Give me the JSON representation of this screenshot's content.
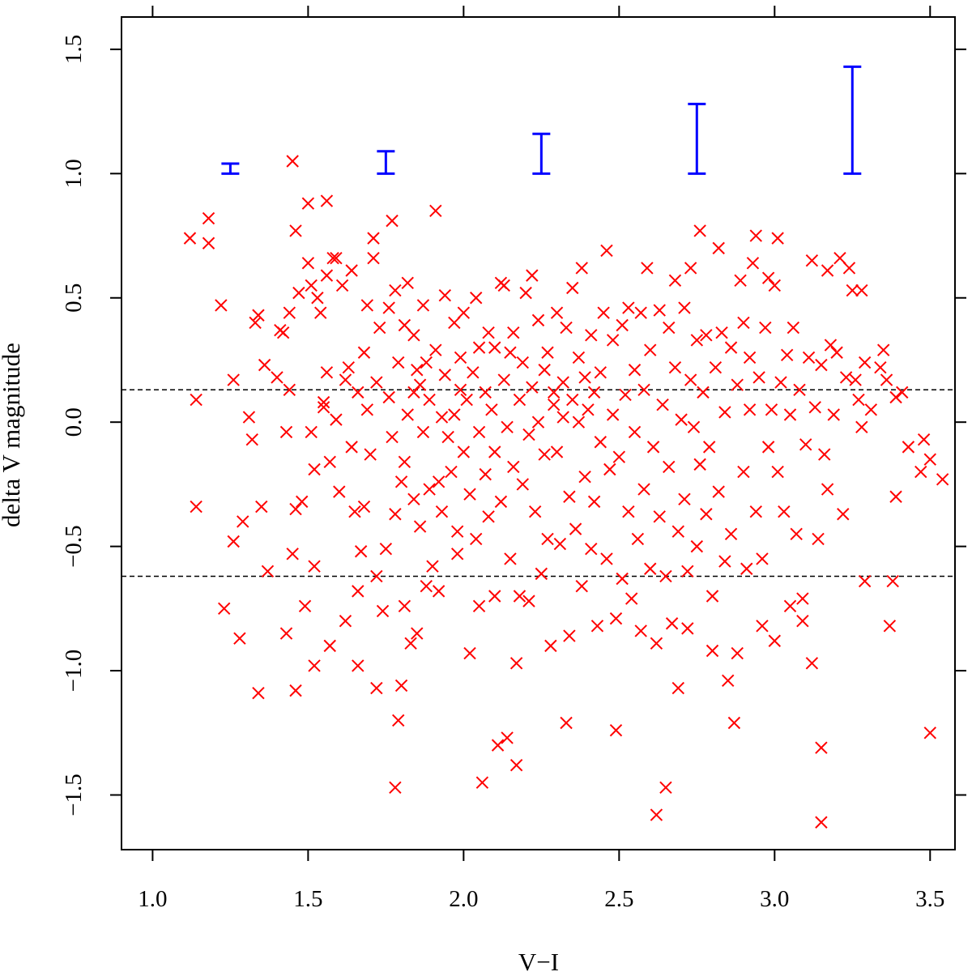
{
  "chart_data": {
    "type": "scatter",
    "title": "",
    "xlabel": "V−I",
    "ylabel": "delta V magnitude",
    "xlim": [
      0.9,
      3.58
    ],
    "ylim": [
      -1.72,
      1.63
    ],
    "x_ticks": [
      1.0,
      1.5,
      2.0,
      2.5,
      3.0,
      3.5
    ],
    "x_tick_labels": [
      "1.0",
      "1.5",
      "2.0",
      "2.5",
      "3.0",
      "3.5"
    ],
    "y_ticks": [
      -1.5,
      -1.0,
      -0.5,
      0.0,
      0.5,
      1.0,
      1.5
    ],
    "y_tick_labels": [
      "−1.5",
      "−1.0",
      "−0.5",
      "0.0",
      "0.5",
      "1.0",
      "1.5"
    ],
    "grid": false,
    "colors": {
      "points": "#ff0000",
      "error_bars": "#0000ff",
      "reference_lines": "#000000"
    },
    "reference_lines": [
      0.13,
      -0.62
    ],
    "error_bars": [
      {
        "x": 1.25,
        "low": 1.0,
        "high": 1.04
      },
      {
        "x": 1.75,
        "low": 1.0,
        "high": 1.09
      },
      {
        "x": 2.25,
        "low": 1.0,
        "high": 1.16
      },
      {
        "x": 2.75,
        "low": 1.0,
        "high": 1.28
      },
      {
        "x": 3.25,
        "low": 1.0,
        "high": 1.43
      }
    ],
    "points": [
      [
        1.12,
        0.74
      ],
      [
        1.18,
        0.82
      ],
      [
        1.18,
        0.72
      ],
      [
        1.22,
        0.47
      ],
      [
        1.14,
        0.09
      ],
      [
        1.14,
        -0.34
      ],
      [
        1.23,
        -0.75
      ],
      [
        1.26,
        0.17
      ],
      [
        1.26,
        -0.48
      ],
      [
        1.28,
        -0.87
      ],
      [
        1.29,
        -0.4
      ],
      [
        1.31,
        0.02
      ],
      [
        1.32,
        -0.07
      ],
      [
        1.33,
        0.4
      ],
      [
        1.34,
        0.43
      ],
      [
        1.35,
        -0.34
      ],
      [
        1.34,
        -1.09
      ],
      [
        1.36,
        0.23
      ],
      [
        1.37,
        -0.6
      ],
      [
        1.4,
        0.18
      ],
      [
        1.41,
        0.37
      ],
      [
        1.42,
        0.36
      ],
      [
        1.43,
        -0.04
      ],
      [
        1.43,
        -0.85
      ],
      [
        1.44,
        0.13
      ],
      [
        1.44,
        0.44
      ],
      [
        1.45,
        -0.53
      ],
      [
        1.45,
        1.05
      ],
      [
        1.46,
        -0.35
      ],
      [
        1.46,
        -1.08
      ],
      [
        1.46,
        0.77
      ],
      [
        1.47,
        0.52
      ],
      [
        1.48,
        -0.32
      ],
      [
        1.49,
        -0.74
      ],
      [
        1.5,
        0.88
      ],
      [
        1.5,
        0.64
      ],
      [
        1.51,
        0.55
      ],
      [
        1.51,
        -0.04
      ],
      [
        1.52,
        -0.19
      ],
      [
        1.52,
        -0.58
      ],
      [
        1.52,
        -0.98
      ],
      [
        1.53,
        0.5
      ],
      [
        1.54,
        0.44
      ],
      [
        1.55,
        0.08
      ],
      [
        1.55,
        0.06
      ],
      [
        1.56,
        0.59
      ],
      [
        1.56,
        0.89
      ],
      [
        1.56,
        0.2
      ],
      [
        1.57,
        -0.16
      ],
      [
        1.57,
        -0.9
      ],
      [
        1.58,
        0.66
      ],
      [
        1.59,
        0.66
      ],
      [
        1.59,
        0.01
      ],
      [
        1.6,
        -0.28
      ],
      [
        1.61,
        0.55
      ],
      [
        1.62,
        0.17
      ],
      [
        1.62,
        -0.8
      ],
      [
        1.63,
        0.22
      ],
      [
        1.64,
        0.61
      ],
      [
        1.64,
        -0.1
      ],
      [
        1.65,
        -0.36
      ],
      [
        1.66,
        0.12
      ],
      [
        1.66,
        -0.68
      ],
      [
        1.66,
        -0.98
      ],
      [
        1.67,
        -0.52
      ],
      [
        1.68,
        0.28
      ],
      [
        1.68,
        -0.34
      ],
      [
        1.69,
        0.47
      ],
      [
        1.69,
        0.05
      ],
      [
        1.7,
        -0.13
      ],
      [
        1.71,
        0.74
      ],
      [
        1.71,
        0.66
      ],
      [
        1.72,
        0.16
      ],
      [
        1.72,
        -0.62
      ],
      [
        1.72,
        -1.07
      ],
      [
        1.73,
        0.38
      ],
      [
        1.74,
        -0.76
      ],
      [
        1.75,
        -0.51
      ],
      [
        1.76,
        0.1
      ],
      [
        1.76,
        0.46
      ],
      [
        1.77,
        -0.06
      ],
      [
        1.77,
        0.81
      ],
      [
        1.78,
        0.53
      ],
      [
        1.78,
        -0.37
      ],
      [
        1.78,
        -1.47
      ],
      [
        1.79,
        0.24
      ],
      [
        1.79,
        -1.2
      ],
      [
        1.8,
        -0.24
      ],
      [
        1.8,
        -1.06
      ],
      [
        1.81,
        0.39
      ],
      [
        1.81,
        -0.16
      ],
      [
        1.81,
        -0.74
      ],
      [
        1.82,
        0.56
      ],
      [
        1.82,
        0.03
      ],
      [
        1.83,
        -0.89
      ],
      [
        1.84,
        0.35
      ],
      [
        1.84,
        0.12
      ],
      [
        1.84,
        -0.31
      ],
      [
        1.85,
        0.21
      ],
      [
        1.85,
        -0.85
      ],
      [
        1.86,
        -0.42
      ],
      [
        1.86,
        0.15
      ],
      [
        1.87,
        -0.04
      ],
      [
        1.87,
        0.47
      ],
      [
        1.88,
        -0.66
      ],
      [
        1.88,
        0.24
      ],
      [
        1.89,
        -0.27
      ],
      [
        1.89,
        0.09
      ],
      [
        1.9,
        -0.58
      ],
      [
        1.91,
        0.85
      ],
      [
        1.91,
        0.29
      ],
      [
        1.92,
        -0.24
      ],
      [
        1.92,
        -0.68
      ],
      [
        1.93,
        0.02
      ],
      [
        1.93,
        -0.36
      ],
      [
        1.94,
        0.51
      ],
      [
        1.94,
        0.19
      ],
      [
        1.95,
        -0.06
      ],
      [
        1.96,
        -0.2
      ],
      [
        1.97,
        0.4
      ],
      [
        1.97,
        0.03
      ],
      [
        1.98,
        -0.53
      ],
      [
        1.98,
        -0.44
      ],
      [
        1.99,
        0.26
      ],
      [
        1.99,
        0.13
      ],
      [
        2.0,
        -0.12
      ],
      [
        2.0,
        0.44
      ],
      [
        2.01,
        0.09
      ],
      [
        2.02,
        -0.29
      ],
      [
        2.02,
        -0.93
      ],
      [
        2.03,
        0.2
      ],
      [
        2.04,
        0.5
      ],
      [
        2.04,
        -0.47
      ],
      [
        2.05,
        -0.04
      ],
      [
        2.05,
        0.3
      ],
      [
        2.05,
        -0.74
      ],
      [
        2.06,
        -1.45
      ],
      [
        2.07,
        0.12
      ],
      [
        2.07,
        -0.21
      ],
      [
        2.08,
        0.36
      ],
      [
        2.08,
        -0.38
      ],
      [
        2.09,
        0.05
      ],
      [
        2.1,
        0.3
      ],
      [
        2.1,
        -0.12
      ],
      [
        2.1,
        -0.7
      ],
      [
        2.11,
        -1.3
      ],
      [
        2.12,
        0.56
      ],
      [
        2.12,
        -0.32
      ],
      [
        2.13,
        0.17
      ],
      [
        2.13,
        0.55
      ],
      [
        2.14,
        -0.02
      ],
      [
        2.14,
        -1.27
      ],
      [
        2.15,
        0.28
      ],
      [
        2.15,
        -0.55
      ],
      [
        2.16,
        -0.18
      ],
      [
        2.16,
        0.36
      ],
      [
        2.17,
        -0.97
      ],
      [
        2.17,
        -1.38
      ],
      [
        2.18,
        0.09
      ],
      [
        2.18,
        -0.7
      ],
      [
        2.19,
        -0.25
      ],
      [
        2.19,
        0.24
      ],
      [
        2.2,
        0.52
      ],
      [
        2.21,
        -0.05
      ],
      [
        2.21,
        -0.72
      ],
      [
        2.22,
        0.14
      ],
      [
        2.22,
        0.59
      ],
      [
        2.23,
        -0.36
      ],
      [
        2.24,
        0.41
      ],
      [
        2.24,
        0.0
      ],
      [
        2.25,
        -0.61
      ],
      [
        2.26,
        0.21
      ],
      [
        2.26,
        -0.13
      ],
      [
        2.27,
        0.28
      ],
      [
        2.27,
        -0.47
      ],
      [
        2.28,
        -0.9
      ],
      [
        2.29,
        0.07
      ],
      [
        2.29,
        0.12
      ],
      [
        2.3,
        -0.12
      ],
      [
        2.3,
        0.44
      ],
      [
        2.31,
        -0.49
      ],
      [
        2.32,
        0.02
      ],
      [
        2.32,
        0.16
      ],
      [
        2.33,
        0.38
      ],
      [
        2.33,
        -1.21
      ],
      [
        2.34,
        -0.3
      ],
      [
        2.34,
        -0.86
      ],
      [
        2.35,
        0.09
      ],
      [
        2.35,
        0.54
      ],
      [
        2.36,
        -0.43
      ],
      [
        2.37,
        0.26
      ],
      [
        2.37,
        0.0
      ],
      [
        2.38,
        -0.66
      ],
      [
        2.38,
        0.62
      ],
      [
        2.39,
        0.18
      ],
      [
        2.39,
        -0.22
      ],
      [
        2.4,
        0.05
      ],
      [
        2.41,
        -0.51
      ],
      [
        2.41,
        0.35
      ],
      [
        2.42,
        0.12
      ],
      [
        2.42,
        -0.32
      ],
      [
        2.43,
        -0.82
      ],
      [
        2.44,
        0.2
      ],
      [
        2.44,
        -0.08
      ],
      [
        2.45,
        0.44
      ],
      [
        2.46,
        -0.55
      ],
      [
        2.46,
        0.69
      ],
      [
        2.47,
        -0.19
      ],
      [
        2.48,
        0.33
      ],
      [
        2.48,
        0.03
      ],
      [
        2.49,
        -1.24
      ],
      [
        2.49,
        -0.79
      ],
      [
        2.5,
        -0.14
      ],
      [
        2.51,
        0.39
      ],
      [
        2.51,
        -0.63
      ],
      [
        2.52,
        0.11
      ],
      [
        2.53,
        -0.36
      ],
      [
        2.53,
        0.46
      ],
      [
        2.54,
        -0.71
      ],
      [
        2.55,
        0.21
      ],
      [
        2.55,
        -0.04
      ],
      [
        2.56,
        -0.47
      ],
      [
        2.57,
        0.44
      ],
      [
        2.57,
        -0.84
      ],
      [
        2.58,
        0.13
      ],
      [
        2.58,
        -0.27
      ],
      [
        2.59,
        0.62
      ],
      [
        2.6,
        -0.59
      ],
      [
        2.6,
        0.29
      ],
      [
        2.61,
        -0.1
      ],
      [
        2.62,
        -0.89
      ],
      [
        2.62,
        -1.58
      ],
      [
        2.63,
        0.45
      ],
      [
        2.63,
        -0.38
      ],
      [
        2.64,
        0.07
      ],
      [
        2.65,
        -0.62
      ],
      [
        2.65,
        -1.47
      ],
      [
        2.66,
        0.38
      ],
      [
        2.66,
        -0.18
      ],
      [
        2.67,
        -0.81
      ],
      [
        2.68,
        0.57
      ],
      [
        2.68,
        0.22
      ],
      [
        2.69,
        -0.44
      ],
      [
        2.69,
        -1.07
      ],
      [
        2.7,
        0.01
      ],
      [
        2.71,
        0.46
      ],
      [
        2.71,
        -0.31
      ],
      [
        2.72,
        -0.6
      ],
      [
        2.72,
        -0.83
      ],
      [
        2.73,
        0.62
      ],
      [
        2.73,
        0.17
      ],
      [
        2.74,
        -0.02
      ],
      [
        2.75,
        0.33
      ],
      [
        2.75,
        -0.5
      ],
      [
        2.76,
        0.77
      ],
      [
        2.76,
        -0.17
      ],
      [
        2.77,
        0.12
      ],
      [
        2.78,
        -0.37
      ],
      [
        2.78,
        0.35
      ],
      [
        2.79,
        -0.1
      ],
      [
        2.8,
        -0.7
      ],
      [
        2.8,
        -0.92
      ],
      [
        2.81,
        0.22
      ],
      [
        2.82,
        0.7
      ],
      [
        2.82,
        -0.28
      ],
      [
        2.83,
        0.36
      ],
      [
        2.84,
        -0.56
      ],
      [
        2.84,
        0.04
      ],
      [
        2.85,
        -1.04
      ],
      [
        2.86,
        0.3
      ],
      [
        2.86,
        -0.45
      ],
      [
        2.87,
        -1.21
      ],
      [
        2.88,
        0.15
      ],
      [
        2.88,
        -0.93
      ],
      [
        2.89,
        0.57
      ],
      [
        2.9,
        -0.2
      ],
      [
        2.9,
        0.4
      ],
      [
        2.91,
        -0.59
      ],
      [
        2.92,
        0.05
      ],
      [
        2.92,
        0.26
      ],
      [
        2.93,
        0.64
      ],
      [
        2.94,
        0.75
      ],
      [
        2.94,
        -0.36
      ],
      [
        2.95,
        0.18
      ],
      [
        2.96,
        -0.82
      ],
      [
        2.96,
        -0.55
      ],
      [
        2.97,
        0.38
      ],
      [
        2.98,
        -0.1
      ],
      [
        2.98,
        0.58
      ],
      [
        2.99,
        0.05
      ],
      [
        3.0,
        0.55
      ],
      [
        3.0,
        -0.88
      ],
      [
        3.01,
        0.74
      ],
      [
        3.01,
        -0.2
      ],
      [
        3.02,
        0.16
      ],
      [
        3.03,
        -0.36
      ],
      [
        3.04,
        0.27
      ],
      [
        3.05,
        -0.74
      ],
      [
        3.05,
        0.03
      ],
      [
        3.06,
        0.38
      ],
      [
        3.07,
        -0.45
      ],
      [
        3.08,
        0.13
      ],
      [
        3.09,
        -0.8
      ],
      [
        3.09,
        -0.71
      ],
      [
        3.1,
        -0.09
      ],
      [
        3.11,
        0.26
      ],
      [
        3.12,
        0.65
      ],
      [
        3.12,
        -0.97
      ],
      [
        3.13,
        0.06
      ],
      [
        3.14,
        -0.47
      ],
      [
        3.15,
        0.23
      ],
      [
        3.15,
        -1.31
      ],
      [
        3.15,
        -1.61
      ],
      [
        3.16,
        -0.13
      ],
      [
        3.17,
        0.61
      ],
      [
        3.17,
        -0.27
      ],
      [
        3.18,
        0.31
      ],
      [
        3.19,
        0.03
      ],
      [
        3.2,
        0.28
      ],
      [
        3.21,
        0.66
      ],
      [
        3.22,
        -0.37
      ],
      [
        3.23,
        0.18
      ],
      [
        3.24,
        0.62
      ],
      [
        3.25,
        0.53
      ],
      [
        3.26,
        0.17
      ],
      [
        3.27,
        0.09
      ],
      [
        3.28,
        -0.02
      ],
      [
        3.28,
        0.53
      ],
      [
        3.29,
        -0.64
      ],
      [
        3.29,
        0.24
      ],
      [
        3.31,
        0.05
      ],
      [
        3.34,
        0.22
      ],
      [
        3.35,
        0.29
      ],
      [
        3.36,
        0.17
      ],
      [
        3.37,
        -0.82
      ],
      [
        3.38,
        -0.64
      ],
      [
        3.39,
        -0.3
      ],
      [
        3.39,
        0.1
      ],
      [
        3.41,
        0.12
      ],
      [
        3.43,
        -0.1
      ],
      [
        3.47,
        -0.2
      ],
      [
        3.48,
        -0.07
      ],
      [
        3.5,
        -1.25
      ],
      [
        3.5,
        -0.15
      ],
      [
        3.54,
        -0.23
      ]
    ]
  }
}
